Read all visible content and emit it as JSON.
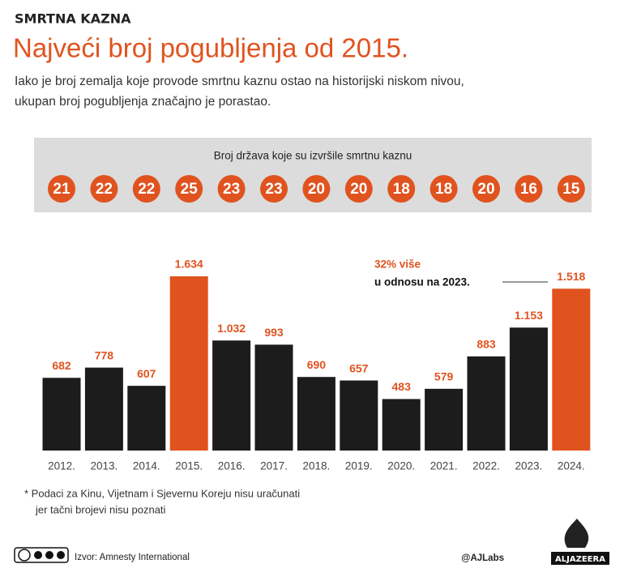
{
  "header": {
    "kicker": "SMRTNA KAZNA",
    "title": "Najveći broj pogubljenja od 2015.",
    "subtitle": [
      "Iako je broj zemalja koje provode smrtnu kaznu ostao na historijski niskom nivou,",
      "ukupan broj pogubljenja značajno je porastao."
    ]
  },
  "chart_data": {
    "type": "bar",
    "categories": [
      "2012.",
      "2013.",
      "2014.",
      "2015.",
      "2016.",
      "2017.",
      "2018.",
      "2019.",
      "2020.",
      "2021.",
      "2022.",
      "2023.",
      "2024."
    ],
    "values": [
      682,
      778,
      607,
      1634,
      1032,
      993,
      690,
      657,
      483,
      579,
      883,
      1153,
      1518
    ],
    "value_labels": [
      "682",
      "778",
      "607",
      "1.634",
      "1.032",
      "993",
      "690",
      "657",
      "483",
      "579",
      "883",
      "1.153",
      "1.518"
    ],
    "colors": [
      "#1c1c1c",
      "#1c1c1c",
      "#1c1c1c",
      "#e0531f",
      "#1c1c1c",
      "#1c1c1c",
      "#1c1c1c",
      "#1c1c1c",
      "#1c1c1c",
      "#1c1c1c",
      "#1c1c1c",
      "#1c1c1c",
      "#e0531f"
    ],
    "label_color": "#e0531f",
    "annotation": [
      "32% više",
      "u odnosu na 2023."
    ],
    "countries": {
      "title": "Broj država koje su izvršile smrtnu kaznu",
      "values": [
        21,
        22,
        22,
        25,
        23,
        23,
        20,
        20,
        18,
        18,
        20,
        16,
        15
      ],
      "color": "#e0531f"
    }
  },
  "footer": {
    "note": [
      "*  Podaci za Kinu, Vijetnam i Sjevernu Koreju nisu uračunati",
      "jer tačni brojevi nisu poznati"
    ],
    "source": "Izvor: Amnesty International",
    "handle": "@AJLabs",
    "brand": "ALJAZEERA"
  }
}
